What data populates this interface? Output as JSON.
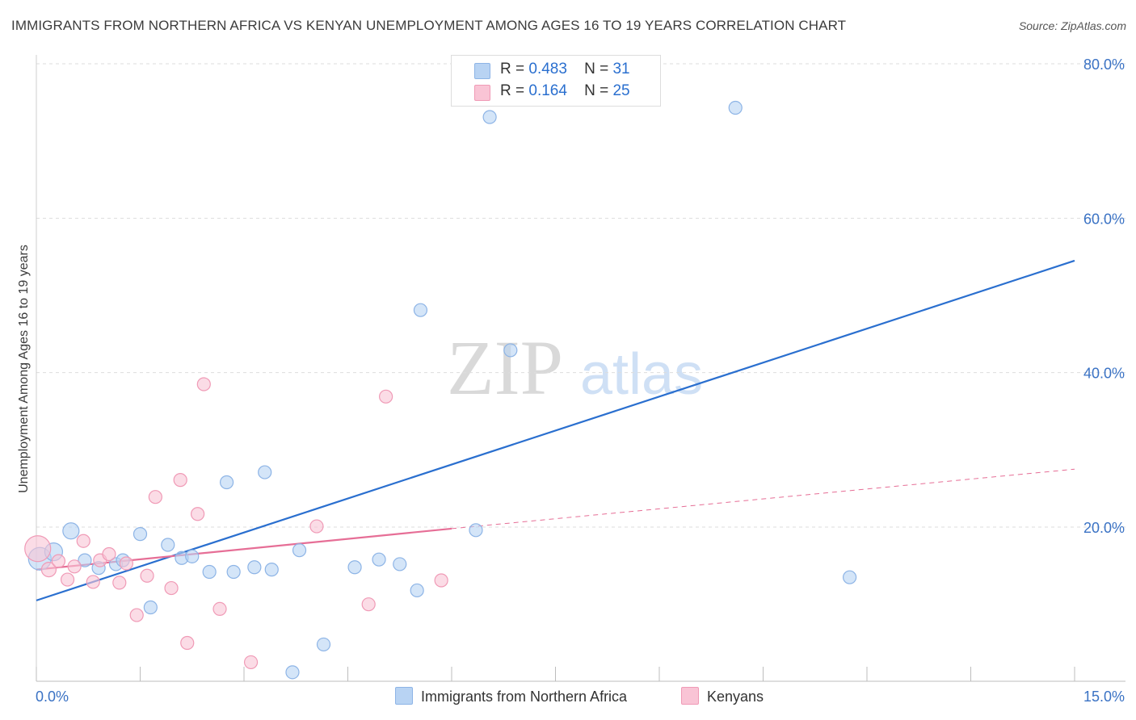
{
  "title": "IMMIGRANTS FROM NORTHERN AFRICA VS KENYAN UNEMPLOYMENT AMONG AGES 16 TO 19 YEARS CORRELATION CHART",
  "source": "Source: ZipAtlas.com",
  "watermark": {
    "zip": "ZIP",
    "atlas": "atlas"
  },
  "colors": {
    "blue_fill": "#b8d3f3",
    "blue_stroke": "#8db4e6",
    "blue_line": "#2a6fcf",
    "pink_fill": "#f9c4d5",
    "pink_stroke": "#f09ab6",
    "pink_line": "#e66e96",
    "grid": "#dddddd",
    "axis_text": "#3a72c4"
  },
  "legend": {
    "r_label": "R =",
    "n_label": "N =",
    "series1": {
      "r": "0.483",
      "n": "31"
    },
    "series2": {
      "r": "0.164",
      "n": "25"
    }
  },
  "chart_data": {
    "type": "scatter",
    "title": "IMMIGRANTS FROM NORTHERN AFRICA VS KENYAN UNEMPLOYMENT AMONG AGES 16 TO 19 YEARS CORRELATION CHART",
    "xlabel": "",
    "ylabel": "Unemployment Among Ages 16 to 19 years",
    "xlim": [
      0,
      15
    ],
    "ylim": [
      0,
      82
    ],
    "x_tick_labels": [
      "0.0%",
      "15.0%"
    ],
    "y_ticks": [
      20,
      40,
      60,
      80
    ],
    "y_tick_labels": [
      "20.0%",
      "40.0%",
      "60.0%",
      "80.0%"
    ],
    "grid": true,
    "series": [
      {
        "name": "Immigrants from Northern Africa",
        "color": "#b8d3f3",
        "points": [
          {
            "x": 0.05,
            "y": 15.9,
            "s": 14
          },
          {
            "x": 0.25,
            "y": 16.8,
            "s": 11
          },
          {
            "x": 0.5,
            "y": 19.5,
            "s": 10
          },
          {
            "x": 0.7,
            "y": 15.7,
            "s": 8
          },
          {
            "x": 0.9,
            "y": 14.7,
            "s": 8
          },
          {
            "x": 1.15,
            "y": 15.2,
            "s": 8
          },
          {
            "x": 1.25,
            "y": 15.7,
            "s": 8
          },
          {
            "x": 1.5,
            "y": 19.1,
            "s": 8
          },
          {
            "x": 1.65,
            "y": 9.6,
            "s": 8
          },
          {
            "x": 1.9,
            "y": 17.7,
            "s": 8
          },
          {
            "x": 2.1,
            "y": 16.0,
            "s": 8
          },
          {
            "x": 2.25,
            "y": 16.2,
            "s": 8
          },
          {
            "x": 2.5,
            "y": 14.2,
            "s": 8
          },
          {
            "x": 2.75,
            "y": 25.8,
            "s": 8
          },
          {
            "x": 2.85,
            "y": 14.2,
            "s": 8
          },
          {
            "x": 3.15,
            "y": 14.8,
            "s": 8
          },
          {
            "x": 3.3,
            "y": 27.1,
            "s": 8
          },
          {
            "x": 3.4,
            "y": 14.5,
            "s": 8
          },
          {
            "x": 3.7,
            "y": 1.2,
            "s": 8
          },
          {
            "x": 3.8,
            "y": 17.0,
            "s": 8
          },
          {
            "x": 4.15,
            "y": 4.8,
            "s": 8
          },
          {
            "x": 4.6,
            "y": 14.8,
            "s": 8
          },
          {
            "x": 4.95,
            "y": 15.8,
            "s": 8
          },
          {
            "x": 5.25,
            "y": 15.2,
            "s": 8
          },
          {
            "x": 5.5,
            "y": 11.8,
            "s": 8
          },
          {
            "x": 5.55,
            "y": 48.1,
            "s": 8
          },
          {
            "x": 6.35,
            "y": 19.6,
            "s": 8
          },
          {
            "x": 6.55,
            "y": 73.1,
            "s": 8
          },
          {
            "x": 6.85,
            "y": 42.9,
            "s": 8
          },
          {
            "x": 10.1,
            "y": 74.3,
            "s": 8
          },
          {
            "x": 11.75,
            "y": 13.5,
            "s": 8
          }
        ]
      },
      {
        "name": "Kenyans",
        "color": "#f9c4d5",
        "points": [
          {
            "x": 0.02,
            "y": 17.2,
            "s": 16
          },
          {
            "x": 0.18,
            "y": 14.5,
            "s": 9
          },
          {
            "x": 0.32,
            "y": 15.6,
            "s": 8
          },
          {
            "x": 0.45,
            "y": 13.2,
            "s": 8
          },
          {
            "x": 0.55,
            "y": 14.9,
            "s": 8
          },
          {
            "x": 0.68,
            "y": 18.2,
            "s": 8
          },
          {
            "x": 0.82,
            "y": 12.9,
            "s": 8
          },
          {
            "x": 0.92,
            "y": 15.7,
            "s": 8
          },
          {
            "x": 1.05,
            "y": 16.5,
            "s": 8
          },
          {
            "x": 1.2,
            "y": 12.8,
            "s": 8
          },
          {
            "x": 1.3,
            "y": 15.3,
            "s": 8
          },
          {
            "x": 1.45,
            "y": 8.6,
            "s": 8
          },
          {
            "x": 1.6,
            "y": 13.7,
            "s": 8
          },
          {
            "x": 1.72,
            "y": 23.9,
            "s": 8
          },
          {
            "x": 1.95,
            "y": 12.1,
            "s": 8
          },
          {
            "x": 2.08,
            "y": 26.1,
            "s": 8
          },
          {
            "x": 2.18,
            "y": 5.0,
            "s": 8
          },
          {
            "x": 2.33,
            "y": 21.7,
            "s": 8
          },
          {
            "x": 2.42,
            "y": 38.5,
            "s": 8
          },
          {
            "x": 2.65,
            "y": 9.4,
            "s": 8
          },
          {
            "x": 3.1,
            "y": 2.5,
            "s": 8
          },
          {
            "x": 4.05,
            "y": 20.1,
            "s": 8
          },
          {
            "x": 4.8,
            "y": 10.0,
            "s": 8
          },
          {
            "x": 5.05,
            "y": 36.9,
            "s": 8
          },
          {
            "x": 5.85,
            "y": 13.1,
            "s": 8
          }
        ]
      }
    ],
    "trend_lines": [
      {
        "series": "Immigrants from Northern Africa",
        "x": [
          0,
          15
        ],
        "y": [
          10.5,
          54.5
        ],
        "style": "solid"
      },
      {
        "series": "Kenyans",
        "x": [
          0,
          6.0
        ],
        "y": [
          14.5,
          19.8
        ],
        "style": "solid"
      },
      {
        "series": "Kenyans",
        "x": [
          6.0,
          15
        ],
        "y": [
          19.8,
          27.5
        ],
        "style": "dashed"
      }
    ]
  }
}
